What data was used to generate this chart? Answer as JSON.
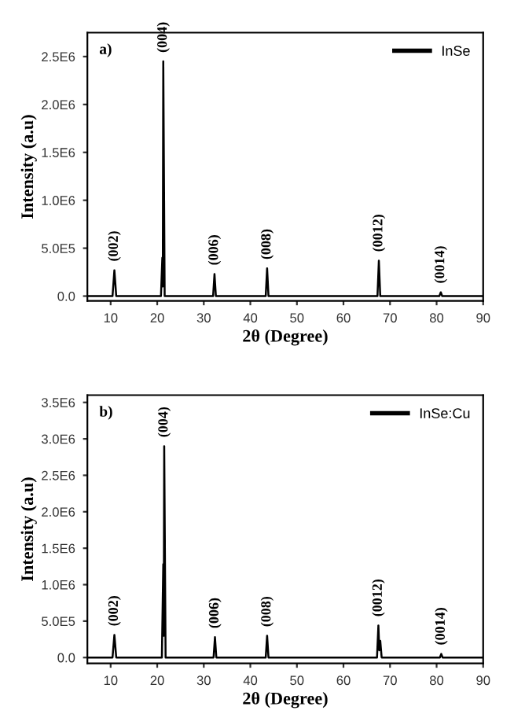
{
  "chart_data": [
    {
      "type": "line",
      "title": "a)",
      "xlabel": "2θ (Degree)",
      "ylabel": "Intensity (a.u)",
      "xlim": [
        5,
        90
      ],
      "ylim": [
        -50000,
        2750000
      ],
      "xticks": [
        10,
        20,
        30,
        40,
        50,
        60,
        70,
        80,
        90
      ],
      "yticks": [
        {
          "value": 0,
          "label": "0.0"
        },
        {
          "value": 500000,
          "label": "5.0E5"
        },
        {
          "value": 1000000,
          "label": "1.0E6"
        },
        {
          "value": 1500000,
          "label": "1.5E6"
        },
        {
          "value": 2000000,
          "label": "2.0E6"
        },
        {
          "value": 2500000,
          "label": "2.5E6"
        }
      ],
      "legend": "top right",
      "grid": false,
      "marker": "none",
      "line_style": "solid",
      "series": [
        {
          "name": "InSe",
          "color": "#000000",
          "x": [
            5,
            10.4,
            10.8,
            11.2,
            20.8,
            21.1,
            21.2,
            21.3,
            21.6,
            32.0,
            32.3,
            32.6,
            43.3,
            43.6,
            43.9,
            67.3,
            67.6,
            67.9,
            80.6,
            80.9,
            81.2,
            90
          ],
          "values": [
            0,
            0,
            270000,
            0,
            0,
            400000,
            100000,
            2450000,
            0,
            0,
            230000,
            0,
            0,
            290000,
            0,
            0,
            370000,
            0,
            0,
            40000,
            0,
            0
          ]
        }
      ],
      "annotations": [
        {
          "text": "(002)",
          "x": 10.8,
          "y": 270000
        },
        {
          "text": "(004)",
          "x": 21.3,
          "y": 2450000
        },
        {
          "text": "(006)",
          "x": 32.3,
          "y": 230000
        },
        {
          "text": "(008)",
          "x": 43.6,
          "y": 290000
        },
        {
          "text": "(0012)",
          "x": 67.6,
          "y": 370000
        },
        {
          "text": "(0014)",
          "x": 80.9,
          "y": 40000
        }
      ]
    },
    {
      "type": "line",
      "title": "b)",
      "xlabel": "2θ (Degree)",
      "ylabel": "Intensity (a.u)",
      "xlim": [
        5,
        90
      ],
      "ylim": [
        -80000,
        3600000
      ],
      "xticks": [
        10,
        20,
        30,
        40,
        50,
        60,
        70,
        80,
        90
      ],
      "yticks": [
        {
          "value": 0,
          "label": "0.0"
        },
        {
          "value": 500000,
          "label": "5.0E5"
        },
        {
          "value": 1000000,
          "label": "1.0E6"
        },
        {
          "value": 1500000,
          "label": "1.5E6"
        },
        {
          "value": 2000000,
          "label": "2.0E6"
        },
        {
          "value": 2500000,
          "label": "2.5E6"
        },
        {
          "value": 3000000,
          "label": "3.0E6"
        },
        {
          "value": 3500000,
          "label": "3.5E6"
        }
      ],
      "legend": "top right",
      "grid": false,
      "marker": "none",
      "line_style": "solid",
      "series": [
        {
          "name": "InSe:Cu",
          "color": "#000000",
          "x": [
            5,
            10.4,
            10.8,
            11.2,
            21.0,
            21.3,
            21.4,
            21.5,
            21.8,
            32.1,
            32.4,
            32.7,
            43.3,
            43.6,
            43.9,
            67.2,
            67.5,
            67.7,
            67.9,
            68.2,
            80.7,
            81.0,
            81.3,
            90
          ],
          "values": [
            0,
            0,
            310000,
            0,
            0,
            1280000,
            300000,
            2900000,
            0,
            0,
            280000,
            0,
            0,
            300000,
            0,
            0,
            440000,
            100000,
            230000,
            0,
            0,
            50000,
            0,
            0
          ]
        }
      ],
      "annotations": [
        {
          "text": "(002)",
          "x": 10.8,
          "y": 310000
        },
        {
          "text": "(004)",
          "x": 21.5,
          "y": 2900000
        },
        {
          "text": "(006)",
          "x": 32.4,
          "y": 280000
        },
        {
          "text": "(008)",
          "x": 43.6,
          "y": 300000
        },
        {
          "text": "(0012)",
          "x": 67.5,
          "y": 440000
        },
        {
          "text": "(0014)",
          "x": 81.0,
          "y": 50000
        }
      ]
    }
  ]
}
